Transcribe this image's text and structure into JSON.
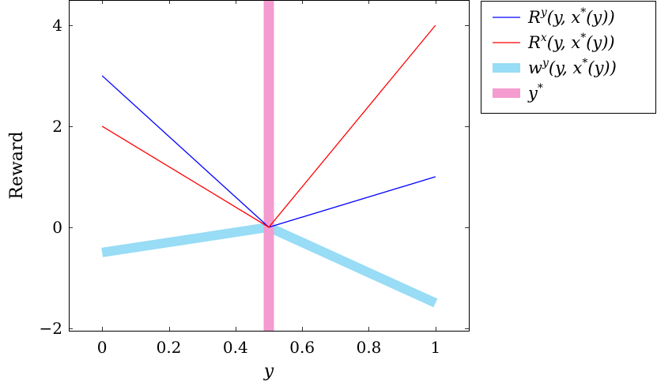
{
  "chart_data": {
    "type": "line",
    "xlabel": "y",
    "ylabel": "Reward",
    "xlim": [
      -0.1,
      1.1
    ],
    "ylim": [
      -2.05,
      4.5
    ],
    "xticks": [
      0,
      0.2,
      0.4,
      0.6,
      0.8,
      1
    ],
    "xtick_labels": [
      "0",
      "0.2",
      "0.4",
      "0.6",
      "0.8",
      "1"
    ],
    "yticks": [
      -2,
      0,
      2,
      4
    ],
    "ytick_labels": [
      "−2",
      "0",
      "2",
      "4"
    ],
    "grid": false,
    "legend_position": "outside-top-right",
    "series": [
      {
        "name": "R^y(y, x*(y))",
        "legend_parts": [
          "R",
          "y",
          "(y, x",
          "*",
          "(y))"
        ],
        "color": "#0000ff",
        "style": "thin",
        "x": [
          0,
          0.5,
          1
        ],
        "y": [
          3,
          0,
          1
        ]
      },
      {
        "name": "R^x(y, x*(y))",
        "legend_parts": [
          "R",
          "x",
          "(y, x",
          "*",
          "(y))"
        ],
        "color": "#ff0000",
        "style": "thin",
        "x": [
          0,
          0.5,
          1
        ],
        "y": [
          2,
          0,
          4
        ]
      },
      {
        "name": "w^y(y, x*(y))",
        "legend_parts": [
          "w",
          "y",
          "(y, x",
          "*",
          "(y))"
        ],
        "color": "#98dcf5",
        "style": "thick",
        "x": [
          0,
          0.5,
          1
        ],
        "y": [
          -0.5,
          0,
          -1.5
        ]
      },
      {
        "name": "y*",
        "legend_parts": [
          "y",
          "*"
        ],
        "color": "#f49ccf",
        "style": "thick-vertical",
        "x": [
          0.5,
          0.5
        ],
        "y": [
          -2.05,
          4.5
        ]
      }
    ]
  }
}
